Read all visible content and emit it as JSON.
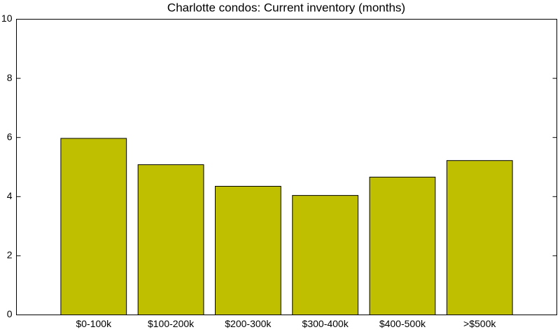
{
  "chart_data": {
    "type": "bar",
    "title": "Charlotte condos: Current inventory (months)",
    "categories": [
      "$0-100k",
      "$100-200k",
      "$200-300k",
      "$300-400k",
      "$400-500k",
      ">$500k"
    ],
    "values": [
      5.97,
      5.08,
      4.35,
      4.04,
      4.66,
      5.22
    ],
    "color": "#bfbf00",
    "ylim": [
      0,
      10
    ],
    "yticks": [
      0,
      2,
      4,
      6,
      8,
      10
    ],
    "grid": false
  }
}
